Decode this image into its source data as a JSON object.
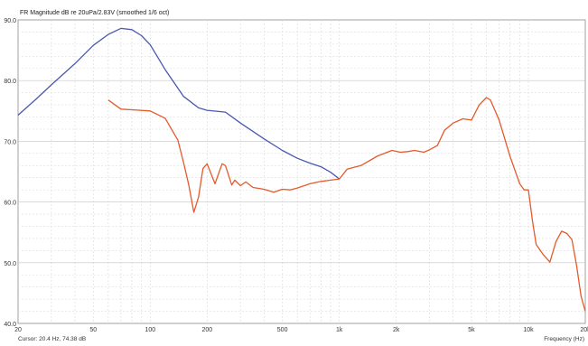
{
  "chart_data": {
    "type": "line",
    "title": "FR Magnitude dB re 20uPa/2.83V (smoothed 1/6 oct)",
    "xlabel": "Frequency (Hz)",
    "ylabel": "",
    "x_scale": "log",
    "xlim": [
      20,
      20000
    ],
    "ylim": [
      40,
      90
    ],
    "grid": true,
    "x_ticks": [
      {
        "value": 20,
        "label": "20"
      },
      {
        "value": 50,
        "label": "50"
      },
      {
        "value": 100,
        "label": "100"
      },
      {
        "value": 200,
        "label": "200"
      },
      {
        "value": 500,
        "label": "500"
      },
      {
        "value": 1000,
        "label": "1k"
      },
      {
        "value": 2000,
        "label": "2k"
      },
      {
        "value": 5000,
        "label": "5k"
      },
      {
        "value": 10000,
        "label": "10k"
      },
      {
        "value": 20000,
        "label": "20k"
      }
    ],
    "y_ticks": [
      {
        "value": 90,
        "label": "90.0"
      },
      {
        "value": 80,
        "label": "80.0"
      },
      {
        "value": 70,
        "label": "70.0"
      },
      {
        "value": 60,
        "label": "60.0"
      },
      {
        "value": 50,
        "label": "50.0"
      },
      {
        "value": 40,
        "label": "40.0"
      }
    ],
    "series": [
      {
        "color": "#4a58b0",
        "x": [
          20,
          25,
          30,
          40,
          50,
          60,
          70,
          80,
          90,
          100,
          120,
          150,
          180,
          200,
          250,
          300,
          400,
          500,
          600,
          700,
          800,
          900,
          1000
        ],
        "y": [
          74.3,
          77.0,
          79.3,
          82.8,
          85.8,
          87.6,
          88.6,
          88.4,
          87.4,
          85.9,
          81.8,
          77.4,
          75.5,
          75.1,
          74.8,
          73.0,
          70.4,
          68.5,
          67.2,
          66.4,
          65.8,
          64.9,
          63.8
        ]
      },
      {
        "color": "#e55a2b",
        "x": [
          60,
          70,
          80,
          100,
          120,
          140,
          150,
          160,
          170,
          180,
          190,
          200,
          220,
          240,
          250,
          270,
          280,
          300,
          320,
          350,
          400,
          450,
          500,
          550,
          600,
          700,
          800,
          900,
          1000,
          1100,
          1300,
          1600,
          1900,
          2100,
          2300,
          2500,
          2800,
          3000,
          3300,
          3600,
          4000,
          4500,
          5000,
          5500,
          6000,
          6300,
          7000,
          8000,
          9000,
          9500,
          10000,
          10500,
          11000,
          12000,
          13000,
          14000,
          15000,
          16000,
          17000,
          18000,
          19000,
          20000
        ],
        "y": [
          76.8,
          75.3,
          75.2,
          75.0,
          73.8,
          70.2,
          66.5,
          62.8,
          58.3,
          60.8,
          65.5,
          66.3,
          63.0,
          66.3,
          66.0,
          62.8,
          63.6,
          62.7,
          63.3,
          62.4,
          62.1,
          61.6,
          62.1,
          62.0,
          62.3,
          63.0,
          63.4,
          63.6,
          63.8,
          65.4,
          66.0,
          67.6,
          68.5,
          68.2,
          68.3,
          68.5,
          68.2,
          68.6,
          69.3,
          71.8,
          73.0,
          73.7,
          73.5,
          76.0,
          77.2,
          76.8,
          73.5,
          67.5,
          63.0,
          62.0,
          62.0,
          57.0,
          53.0,
          51.3,
          50.1,
          53.5,
          55.2,
          54.8,
          53.8,
          49.5,
          44.5,
          42.0
        ]
      }
    ]
  },
  "footer": {
    "cursor_text": "Cursor: 20.4 Hz, 74.38 dB",
    "xlabel_text": "Frequency (Hz)"
  }
}
